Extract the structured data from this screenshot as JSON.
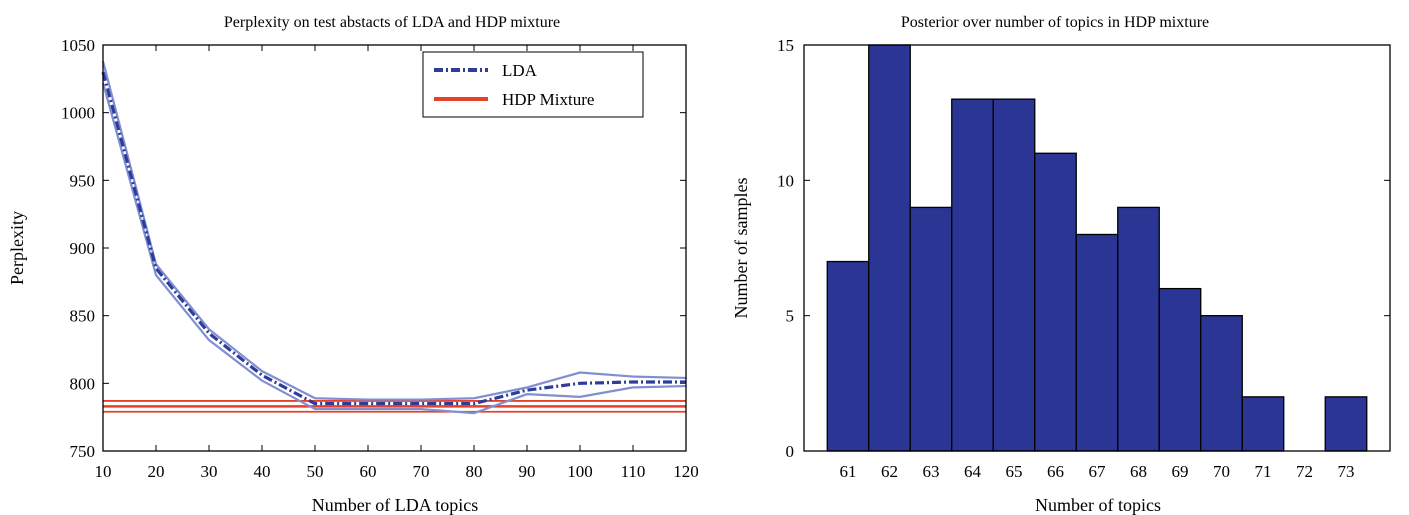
{
  "chart_data": [
    {
      "type": "line",
      "title": "Perplexity on test abstacts of LDA and HDP mixture",
      "xlabel": "Number of LDA topics",
      "ylabel": "Perplexity",
      "xlim": [
        10,
        120
      ],
      "ylim": [
        750,
        1050
      ],
      "xticks": [
        10,
        20,
        30,
        40,
        50,
        60,
        70,
        80,
        90,
        100,
        110,
        120
      ],
      "yticks": [
        750,
        800,
        850,
        900,
        950,
        1000,
        1050
      ],
      "legend_position": "top-right",
      "series": [
        {
          "name": "LDA",
          "color": "#2e3d9c",
          "band_color": "#7f8fd0",
          "style": "dash-dot",
          "x": [
            10,
            20,
            30,
            40,
            50,
            60,
            70,
            80,
            90,
            100,
            110,
            120
          ],
          "y": [
            1030,
            885,
            837,
            806,
            785,
            785,
            785,
            785,
            795,
            800,
            801,
            801
          ],
          "upper": [
            1038,
            888,
            840,
            809,
            789,
            788,
            788,
            789,
            797,
            808,
            805,
            804
          ],
          "lower": [
            1022,
            880,
            832,
            802,
            781,
            781,
            781,
            778,
            792,
            790,
            797,
            798
          ]
        },
        {
          "name": "HDP Mixture",
          "color": "#e8412b",
          "style": "solid",
          "y": 783,
          "upper": 787,
          "lower": 779
        }
      ]
    },
    {
      "type": "bar",
      "title": "Posterior over number of topics in HDP mixture",
      "xlabel": "Number of topics",
      "ylabel": "Number of samples",
      "categories": [
        "61",
        "62",
        "63",
        "64",
        "65",
        "66",
        "67",
        "68",
        "69",
        "70",
        "71",
        "72",
        "73"
      ],
      "values": [
        7,
        15,
        9,
        13,
        13,
        11,
        8,
        9,
        6,
        5,
        2,
        0,
        2
      ],
      "ylim": [
        0,
        15
      ],
      "yticks": [
        0,
        5,
        10,
        15
      ],
      "color": "#2b3593"
    }
  ]
}
